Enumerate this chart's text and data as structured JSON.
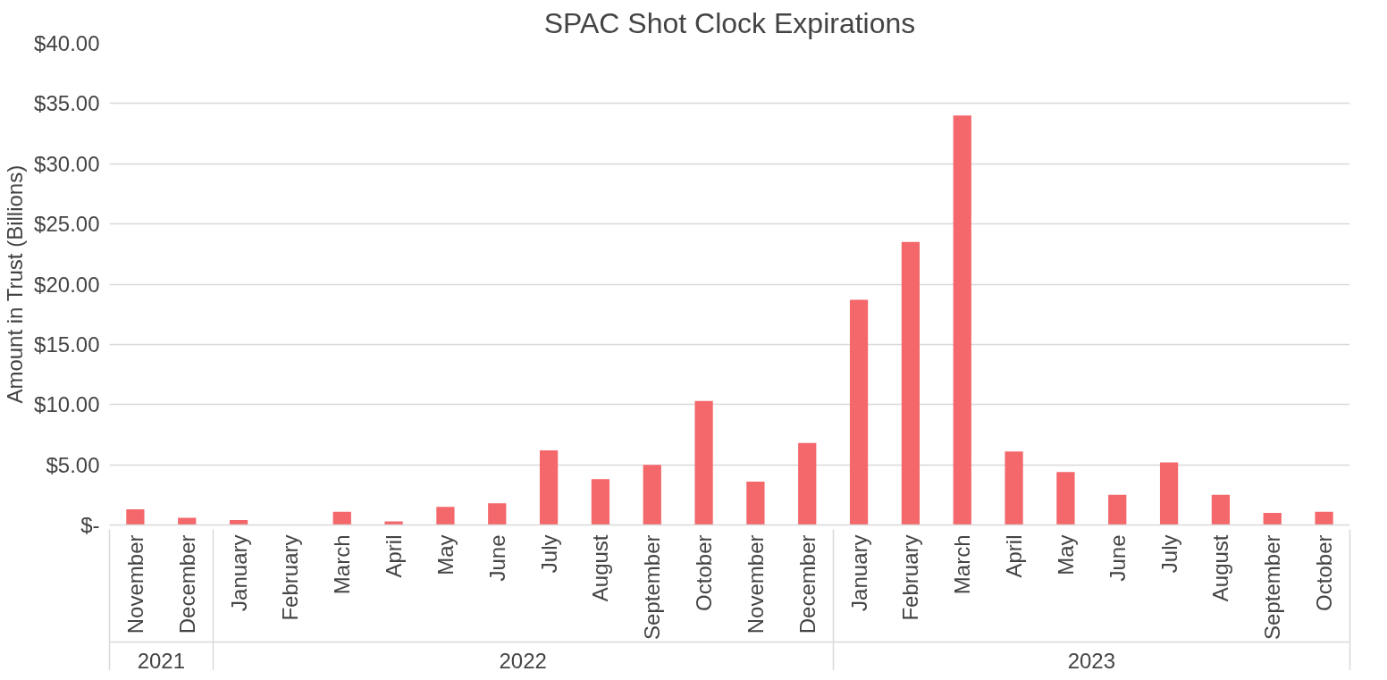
{
  "chart_data": {
    "type": "bar",
    "title": "SPAC Shot Clock Expirations",
    "ylabel": "Amount in Trust (Billions)",
    "categories": [
      "November",
      "December",
      "January",
      "February",
      "March",
      "April",
      "May",
      "June",
      "July",
      "August",
      "September",
      "October",
      "November",
      "December",
      "January",
      "February",
      "March",
      "April",
      "May",
      "June",
      "July",
      "August",
      "September",
      "October"
    ],
    "values": [
      1.3,
      0.6,
      0.4,
      0,
      1.1,
      0.3,
      1.5,
      1.8,
      6.2,
      3.8,
      5.0,
      10.3,
      3.6,
      6.8,
      18.7,
      23.5,
      34.0,
      6.1,
      4.4,
      2.5,
      5.2,
      2.5,
      1.0,
      1.1
    ],
    "color": "#f4676a",
    "annotations": [
      "2021",
      "2022",
      "2023"
    ],
    "ylim": [
      0,
      40
    ],
    "yticks": [
      {
        "value": 0,
        "label": "$-"
      },
      {
        "value": 5,
        "label": "$5.00"
      },
      {
        "value": 10,
        "label": "$10.00"
      },
      {
        "value": 15,
        "label": "$15.00"
      },
      {
        "value": 20,
        "label": "$20.00"
      },
      {
        "value": 25,
        "label": "$25.00"
      },
      {
        "value": 30,
        "label": "$30.00"
      },
      {
        "value": 35,
        "label": "$35.00"
      },
      {
        "value": 40,
        "label": "$40.00"
      }
    ],
    "grid": "y",
    "legend": false
  }
}
